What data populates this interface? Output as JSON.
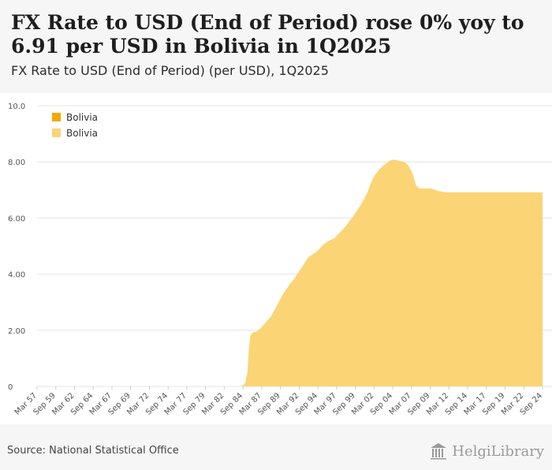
{
  "headline": "FX Rate to USD (End of Period) rose 0% yoy to 6.91 per USD in Bolivia in 1Q2025",
  "subtitle": "FX Rate to USD (End of Period) (per USD), 1Q2025",
  "source": "Source: National Statistical Office",
  "brand": "HelgiLibrary",
  "colors": {
    "series": "#fbd476",
    "legend_primary": "#f2a900",
    "legend_secondary": "#fbd476",
    "grid": "#e4e4e4"
  },
  "chart_data": {
    "type": "area",
    "title": "FX Rate to USD (End of Period) (per USD), 1Q2025",
    "xlabel": "",
    "ylabel": "",
    "ylim": [
      0,
      10
    ],
    "y_ticks": [
      {
        "value": 0,
        "label": "0"
      },
      {
        "value": 2,
        "label": "2.00"
      },
      {
        "value": 4,
        "label": "4.00"
      },
      {
        "value": 6,
        "label": "6.00"
      },
      {
        "value": 8,
        "label": "8.00"
      },
      {
        "value": 10,
        "label": "10.0"
      }
    ],
    "x_ticks": [
      "Mar 57",
      "Sep 59",
      "Mar 62",
      "Sep 64",
      "Mar 67",
      "Sep 69",
      "Mar 72",
      "Sep 74",
      "Mar 77",
      "Sep 79",
      "Mar 82",
      "Sep 84",
      "Mar 87",
      "Sep 89",
      "Mar 92",
      "Sep 94",
      "Mar 97",
      "Sep 99",
      "Mar 02",
      "Sep 04",
      "Mar 07",
      "Sep 09",
      "Mar 12",
      "Sep 14",
      "Mar 17",
      "Sep 19",
      "Mar 22",
      "Sep 24"
    ],
    "x_range": [
      1957.0,
      2025.0
    ],
    "legend": [
      "Bolivia",
      "Bolivia"
    ],
    "legend_position": "top-left",
    "series": [
      {
        "name": "Bolivia",
        "x": [
          1957.0,
          1984.5,
          1985.0,
          1985.3,
          1985.5,
          1985.7,
          1986.0,
          1986.5,
          1987.0,
          1987.5,
          1988.0,
          1988.5,
          1989.0,
          1989.5,
          1990.0,
          1990.5,
          1991.0,
          1991.5,
          1992.0,
          1992.5,
          1993.0,
          1993.5,
          1994.0,
          1994.5,
          1995.0,
          1995.5,
          1996.0,
          1996.5,
          1997.0,
          1997.5,
          1998.0,
          1998.5,
          1999.0,
          1999.5,
          2000.0,
          2000.5,
          2001.0,
          2001.5,
          2002.0,
          2002.5,
          2003.0,
          2003.5,
          2004.0,
          2004.5,
          2005.0,
          2005.5,
          2006.0,
          2006.5,
          2007.0,
          2007.5,
          2008.0,
          2008.5,
          2009.0,
          2009.5,
          2010.0,
          2010.5,
          2011.0,
          2011.5,
          2012.0,
          2015.0,
          2020.0,
          2025.0
        ],
        "values": [
          0.0,
          0.0,
          0.1,
          0.5,
          1.4,
          1.8,
          1.92,
          1.95,
          2.05,
          2.2,
          2.35,
          2.5,
          2.75,
          3.0,
          3.25,
          3.45,
          3.65,
          3.8,
          4.0,
          4.2,
          4.4,
          4.6,
          4.7,
          4.78,
          4.9,
          5.05,
          5.15,
          5.22,
          5.28,
          5.42,
          5.55,
          5.7,
          5.88,
          6.05,
          6.25,
          6.45,
          6.68,
          6.95,
          7.3,
          7.55,
          7.72,
          7.85,
          7.95,
          8.05,
          8.08,
          8.05,
          8.02,
          7.98,
          7.85,
          7.6,
          7.15,
          7.05,
          7.05,
          7.05,
          7.05,
          7.0,
          6.96,
          6.94,
          6.91,
          6.91,
          6.91,
          6.91
        ]
      }
    ]
  }
}
